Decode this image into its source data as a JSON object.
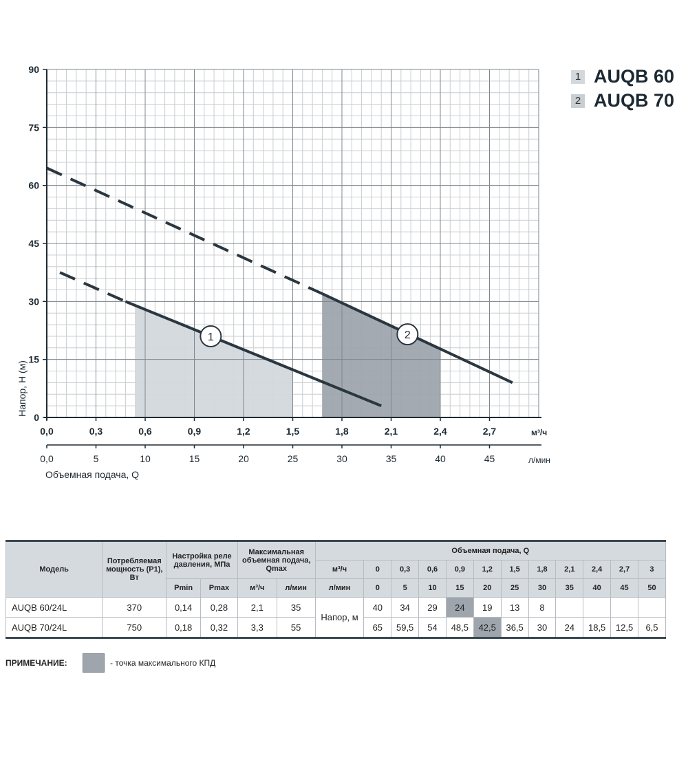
{
  "chart_data": {
    "type": "line",
    "ylabel": "Напор, H (м)",
    "xlabel": "Объемная подача, Q",
    "x_unit": "м³/ч",
    "x2_unit": "л/мин",
    "xlim": [
      0,
      3.0
    ],
    "ylim": [
      0,
      90
    ],
    "x_ticks": [
      "0,0",
      "0,3",
      "0,6",
      "0,9",
      "1,2",
      "1,5",
      "1,8",
      "2,1",
      "2,4",
      "2,7"
    ],
    "x_tick_values": [
      0,
      0.3,
      0.6,
      0.9,
      1.2,
      1.5,
      1.8,
      2.1,
      2.4,
      2.7
    ],
    "x2_ticks": [
      "0,0",
      "5",
      "10",
      "15",
      "20",
      "25",
      "30",
      "35",
      "40",
      "45"
    ],
    "y_ticks": [
      "0",
      "15",
      "30",
      "45",
      "60",
      "75",
      "90"
    ],
    "y_tick_values": [
      0,
      15,
      30,
      45,
      60,
      75,
      90
    ],
    "grid": true,
    "legend_position": "top-right",
    "series": [
      {
        "name": "AUQB 60",
        "badge": "1",
        "dashed_points": [
          [
            0.08,
            37.5
          ],
          [
            0.48,
            30.0
          ]
        ],
        "solid_points": [
          [
            0.48,
            30.0
          ],
          [
            2.04,
            3.0
          ]
        ],
        "label_point": [
          1.0,
          21.0
        ],
        "operating_range": [
          0.54,
          1.5
        ]
      },
      {
        "name": "AUQB 70",
        "badge": "2",
        "dashed_points": [
          [
            0.0,
            64.5
          ],
          [
            1.68,
            32.0
          ]
        ],
        "solid_points": [
          [
            1.68,
            32.0
          ],
          [
            2.84,
            9.0
          ]
        ],
        "label_point": [
          2.2,
          21.5
        ],
        "operating_range": [
          1.68,
          2.4
        ]
      }
    ]
  },
  "colors": {
    "line": "#2b3740",
    "grid_major": "#7f878d",
    "grid_minor": "#c9cdd0",
    "range_1": "#d3d8dc",
    "range_2": "#9ea5ad",
    "highlight": "#9ea5ad"
  },
  "legend": [
    {
      "badge": "1",
      "name": "AUQB 60"
    },
    {
      "badge": "2",
      "name": "AUQB 70"
    }
  ],
  "table": {
    "headers": {
      "model": "Модель",
      "power": "Потребляемая мощность (P1), Вт",
      "relay": "Настройка реле давления, МПа",
      "qmax": "Максимальная объемная подача, Qmax",
      "flow": "Объемная подача, Q",
      "pmin": "Pmin",
      "pmax": "Pmax",
      "m3h": "м³/ч",
      "lmin": "л/мин",
      "flow_m3h": [
        "0",
        "0,3",
        "0,6",
        "0,9",
        "1,2",
        "1,5",
        "1,8",
        "2,1",
        "2,4",
        "2,7",
        "3"
      ],
      "flow_lmin": [
        "0",
        "5",
        "10",
        "15",
        "20",
        "25",
        "30",
        "35",
        "40",
        "45",
        "50"
      ]
    },
    "head_label": "Напор, м",
    "rows": [
      {
        "model": "AUQB 60/24L",
        "power": "370",
        "pmin": "0,14",
        "pmax": "0,28",
        "qmax_m3h": "2,1",
        "qmax_lmin": "35",
        "heads": [
          "40",
          "34",
          "29",
          "24",
          "19",
          "13",
          "8",
          "",
          "",
          "",
          ""
        ],
        "highlight_index": 3
      },
      {
        "model": "AUQB 70/24L",
        "power": "750",
        "pmin": "0,18",
        "pmax": "0,32",
        "qmax_m3h": "3,3",
        "qmax_lmin": "55",
        "heads": [
          "65",
          "59,5",
          "54",
          "48,5",
          "42,5",
          "36,5",
          "30",
          "24",
          "18,5",
          "12,5",
          "6,5"
        ],
        "highlight_index": 4
      }
    ]
  },
  "note": {
    "label": "ПРИМЕЧАНИЕ:",
    "text": "- точка максимального КПД"
  }
}
